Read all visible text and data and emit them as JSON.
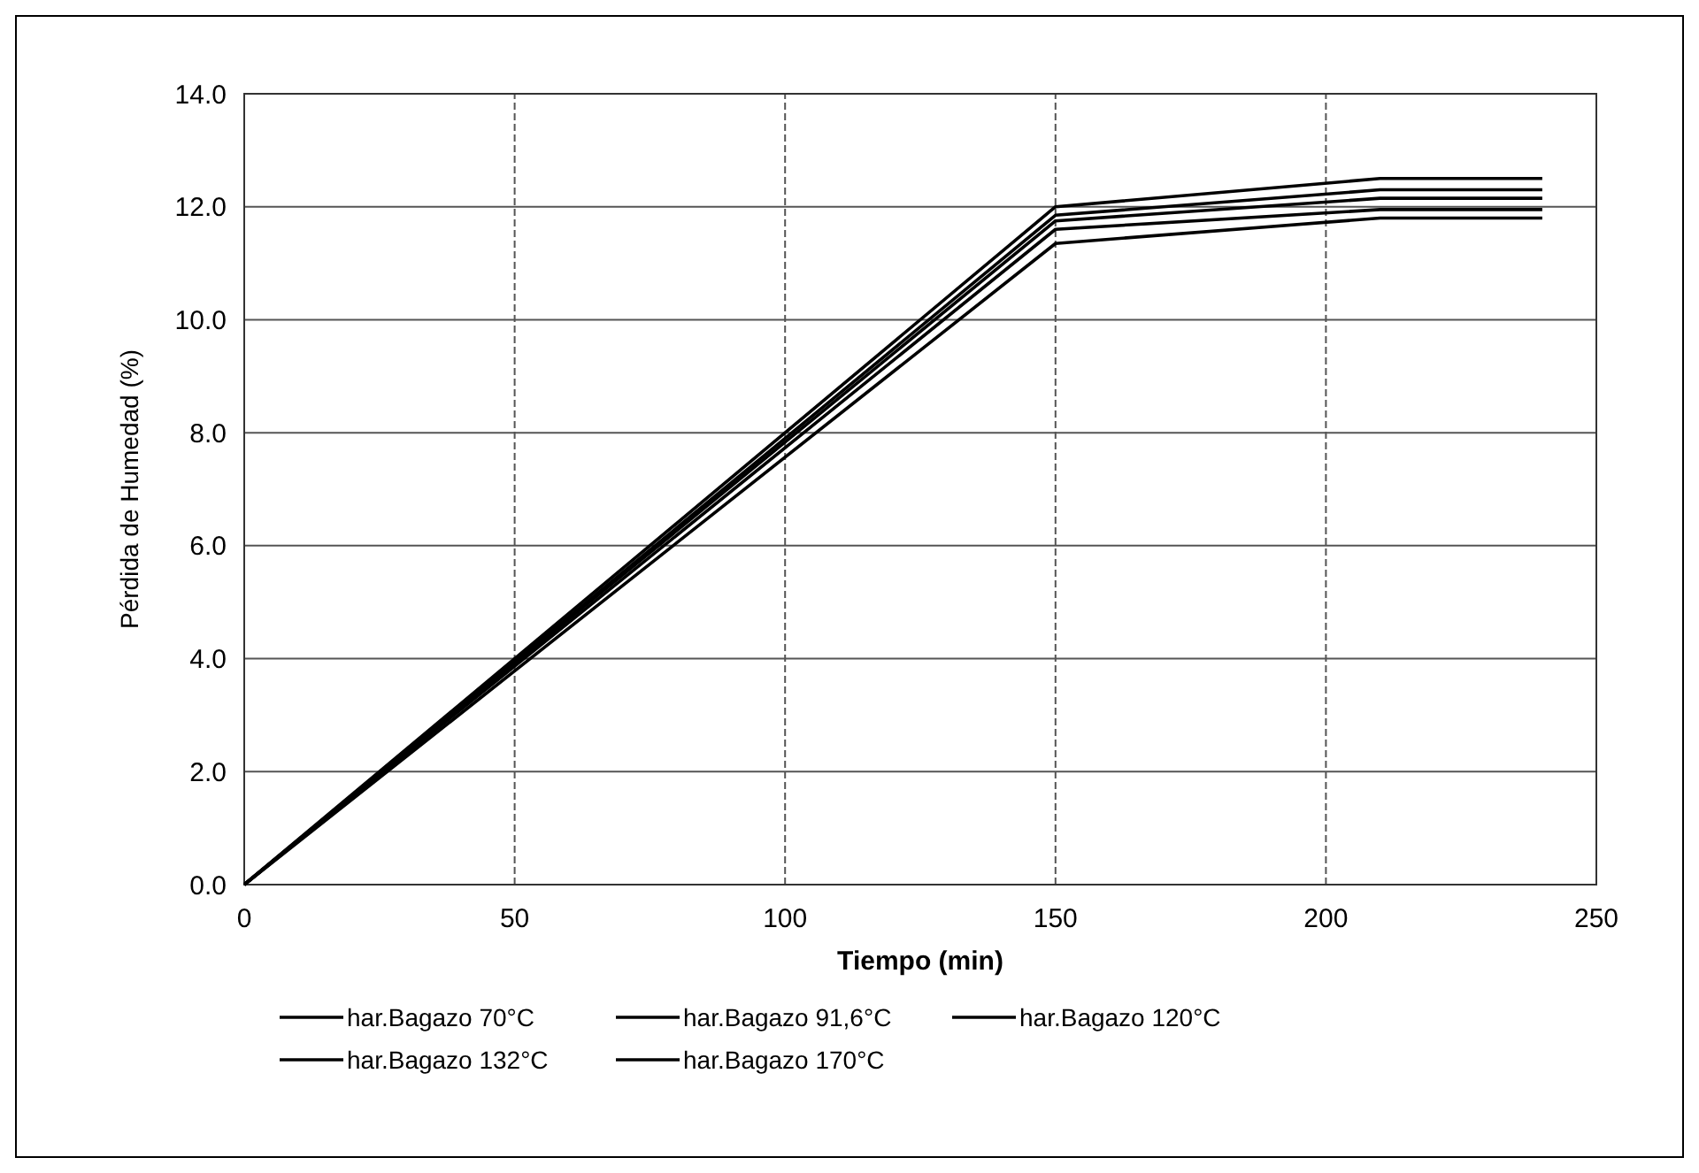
{
  "chart_data": {
    "type": "line",
    "xlabel": "Tiempo (min)",
    "ylabel": "Pérdida de Humedad (%)",
    "xlim": [
      0,
      250
    ],
    "xticks": [
      0,
      50,
      100,
      150,
      200,
      250
    ],
    "ylim": [
      0,
      14
    ],
    "yticks": [
      {
        "value": 0,
        "label": "0.0"
      },
      {
        "value": 2,
        "label": "2.0"
      },
      {
        "value": 4,
        "label": "4.0"
      },
      {
        "value": 6,
        "label": "6.0"
      },
      {
        "value": 8,
        "label": "8.0"
      },
      {
        "value": 10,
        "label": "10.0"
      },
      {
        "value": 12,
        "label": "12.0"
      },
      {
        "value": 14,
        "label": "14.0"
      }
    ],
    "grid": true,
    "legend": "bottom",
    "marker": "none",
    "line_style": "solid",
    "series": [
      {
        "name": "har.Bagazo 70°C",
        "color": "#000000",
        "x": [
          0,
          150,
          210,
          240
        ],
        "values": [
          0,
          12.0,
          12.5,
          12.5
        ]
      },
      {
        "name": "har.Bagazo 91,6°C",
        "color": "#000000",
        "x": [
          0,
          150,
          210,
          240
        ],
        "values": [
          0,
          11.85,
          12.3,
          12.3
        ]
      },
      {
        "name": "har.Bagazo 120°C",
        "color": "#000000",
        "x": [
          0,
          150,
          210,
          240
        ],
        "values": [
          0,
          11.75,
          12.15,
          12.15
        ]
      },
      {
        "name": "har.Bagazo 132°C",
        "color": "#000000",
        "x": [
          0,
          150,
          210,
          240
        ],
        "values": [
          0,
          11.6,
          11.95,
          11.95
        ]
      },
      {
        "name": "har.Bagazo 170°C",
        "color": "#000000",
        "x": [
          0,
          150,
          210,
          240
        ],
        "values": [
          0,
          11.35,
          11.8,
          11.8
        ]
      }
    ]
  }
}
